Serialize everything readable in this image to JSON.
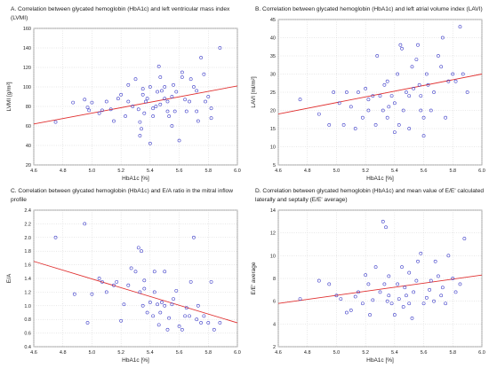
{
  "colors": {
    "point": "#3d3dc8",
    "line": "#e03030",
    "frame": "#8a8a8a",
    "text": "#222222",
    "panel": "#ffffff"
  },
  "chart_data": [
    {
      "panel": "A",
      "type": "scatter",
      "title": "A. Correlation between glycated hemoglobin (HbA1c) and left ventricular mass index (LVMI)",
      "xlabel": "HbA1c [%]",
      "ylabel": "LVMI [g/m²]",
      "xlim": [
        4.6,
        6.0
      ],
      "ylim": [
        20,
        160
      ],
      "xticks": [
        "4.6",
        "4.8",
        "5.0",
        "5.2",
        "5.4",
        "5.6",
        "5.8",
        "6.0"
      ],
      "yticks": [
        "20",
        "40",
        "60",
        "80",
        "100",
        "120",
        "140",
        "160"
      ],
      "grid": true,
      "regression": {
        "x": [
          4.6,
          6.0
        ],
        "y": [
          62,
          101
        ]
      },
      "points": [
        [
          4.75,
          64
        ],
        [
          4.87,
          84
        ],
        [
          4.95,
          87
        ],
        [
          4.97,
          79
        ],
        [
          4.98,
          76
        ],
        [
          5.0,
          84
        ],
        [
          5.05,
          73
        ],
        [
          5.07,
          76
        ],
        [
          5.1,
          85
        ],
        [
          5.13,
          77
        ],
        [
          5.15,
          65
        ],
        [
          5.18,
          88
        ],
        [
          5.2,
          92
        ],
        [
          5.23,
          70
        ],
        [
          5.25,
          85
        ],
        [
          5.28,
          80
        ],
        [
          5.3,
          108
        ],
        [
          5.32,
          77
        ],
        [
          5.33,
          64
        ],
        [
          5.35,
          92
        ],
        [
          5.33,
          50
        ],
        [
          5.34,
          57
        ],
        [
          5.36,
          73
        ],
        [
          5.37,
          85
        ],
        [
          5.38,
          88
        ],
        [
          5.4,
          100
        ],
        [
          5.4,
          42
        ],
        [
          5.42,
          78
        ],
        [
          5.44,
          80
        ],
        [
          5.45,
          95
        ],
        [
          5.46,
          121
        ],
        [
          5.47,
          110
        ],
        [
          5.48,
          96
        ],
        [
          5.5,
          100
        ],
        [
          5.5,
          88
        ],
        [
          5.52,
          85
        ],
        [
          5.53,
          70
        ],
        [
          5.55,
          90
        ],
        [
          5.55,
          60
        ],
        [
          5.57,
          75
        ],
        [
          5.58,
          95
        ],
        [
          5.6,
          45
        ],
        [
          5.62,
          115
        ],
        [
          5.62,
          110
        ],
        [
          5.64,
          87
        ],
        [
          5.65,
          75
        ],
        [
          5.67,
          85
        ],
        [
          5.7,
          100
        ],
        [
          5.72,
          96
        ],
        [
          5.73,
          65
        ],
        [
          5.75,
          130
        ],
        [
          5.77,
          113
        ],
        [
          5.78,
          85
        ],
        [
          5.8,
          90
        ],
        [
          5.82,
          78
        ],
        [
          5.82,
          68
        ],
        [
          5.88,
          140
        ],
        [
          5.72,
          75
        ],
        [
          5.52,
          75
        ],
        [
          5.35,
          98
        ],
        [
          5.56,
          102
        ],
        [
          5.47,
          82
        ],
        [
          5.42,
          70
        ],
        [
          5.68,
          108
        ],
        [
          5.25,
          102
        ]
      ]
    },
    {
      "panel": "B",
      "type": "scatter",
      "title": "B. Correlation between glycated hemoglobin (HbA1c) and left atrial volume index (LAVI)",
      "xlabel": "HbA1c [%]",
      "ylabel": "LAVI [ml/m²]",
      "xlim": [
        4.6,
        6.0
      ],
      "ylim": [
        5,
        45
      ],
      "xticks": [
        "4.6",
        "4.8",
        "5.0",
        "5.2",
        "5.4",
        "5.6",
        "5.8",
        "6.0"
      ],
      "yticks": [
        "5",
        "10",
        "15",
        "20",
        "25",
        "30",
        "35",
        "40",
        "45"
      ],
      "grid": true,
      "regression": {
        "x": [
          4.6,
          6.0
        ],
        "y": [
          19,
          30
        ]
      },
      "points": [
        [
          4.75,
          23
        ],
        [
          4.88,
          19
        ],
        [
          4.95,
          16
        ],
        [
          4.98,
          25
        ],
        [
          5.02,
          22
        ],
        [
          5.05,
          16
        ],
        [
          5.07,
          25
        ],
        [
          5.1,
          21
        ],
        [
          5.13,
          15
        ],
        [
          5.15,
          25
        ],
        [
          5.18,
          18
        ],
        [
          5.2,
          26
        ],
        [
          5.22,
          20
        ],
        [
          5.25,
          24
        ],
        [
          5.27,
          16
        ],
        [
          5.28,
          35
        ],
        [
          5.3,
          24
        ],
        [
          5.32,
          20
        ],
        [
          5.33,
          27
        ],
        [
          5.35,
          18
        ],
        [
          5.36,
          21
        ],
        [
          5.38,
          24
        ],
        [
          5.4,
          22
        ],
        [
          5.4,
          14
        ],
        [
          5.42,
          30
        ],
        [
          5.43,
          16
        ],
        [
          5.44,
          38
        ],
        [
          5.45,
          37
        ],
        [
          5.46,
          20
        ],
        [
          5.48,
          25
        ],
        [
          5.5,
          15
        ],
        [
          5.5,
          24
        ],
        [
          5.52,
          32
        ],
        [
          5.53,
          26
        ],
        [
          5.55,
          34
        ],
        [
          5.56,
          38
        ],
        [
          5.57,
          27
        ],
        [
          5.58,
          20
        ],
        [
          5.6,
          18
        ],
        [
          5.6,
          13
        ],
        [
          5.62,
          30
        ],
        [
          5.63,
          27
        ],
        [
          5.65,
          20
        ],
        [
          5.67,
          25
        ],
        [
          5.7,
          35
        ],
        [
          5.72,
          32
        ],
        [
          5.73,
          40
        ],
        [
          5.75,
          18
        ],
        [
          5.77,
          28
        ],
        [
          5.8,
          30
        ],
        [
          5.82,
          28
        ],
        [
          5.85,
          43
        ],
        [
          5.87,
          30
        ],
        [
          5.9,
          25
        ],
        [
          5.58,
          24
        ],
        [
          5.35,
          28
        ],
        [
          5.22,
          23
        ]
      ]
    },
    {
      "panel": "C",
      "type": "scatter",
      "title": "C. Correlation between glycated hemoglobin (HbA1c) and E/A ratio in the mitral inflow profile",
      "xlabel": "HbA1c [%]",
      "ylabel": "E/A",
      "xlim": [
        4.6,
        6.0
      ],
      "ylim": [
        0.4,
        2.4
      ],
      "xticks": [
        "4.6",
        "4.8",
        "5.0",
        "5.2",
        "5.4",
        "5.6",
        "5.8",
        "6.0"
      ],
      "yticks": [
        "0.4",
        "0.6",
        "0.8",
        "1.0",
        "1.2",
        "1.4",
        "1.6",
        "1.8",
        "2.0",
        "2.2",
        "2.4"
      ],
      "grid": true,
      "regression": {
        "x": [
          4.6,
          6.0
        ],
        "y": [
          1.65,
          0.75
        ]
      },
      "points": [
        [
          4.75,
          2.0
        ],
        [
          4.88,
          1.17
        ],
        [
          4.95,
          2.2
        ],
        [
          4.97,
          0.75
        ],
        [
          5.0,
          1.17
        ],
        [
          5.05,
          1.4
        ],
        [
          5.07,
          1.35
        ],
        [
          5.1,
          1.2
        ],
        [
          5.15,
          1.3
        ],
        [
          5.17,
          1.35
        ],
        [
          5.2,
          0.78
        ],
        [
          5.22,
          1.02
        ],
        [
          5.25,
          1.3
        ],
        [
          5.27,
          1.55
        ],
        [
          5.3,
          1.5
        ],
        [
          5.32,
          1.85
        ],
        [
          5.33,
          1.2
        ],
        [
          5.34,
          1.8
        ],
        [
          5.35,
          1.0
        ],
        [
          5.36,
          1.37
        ],
        [
          5.38,
          0.9
        ],
        [
          5.4,
          1.05
        ],
        [
          5.42,
          0.85
        ],
        [
          5.43,
          1.5
        ],
        [
          5.45,
          1.02
        ],
        [
          5.46,
          0.72
        ],
        [
          5.47,
          0.9
        ],
        [
          5.48,
          1.05
        ],
        [
          5.5,
          1.5
        ],
        [
          5.5,
          1.0
        ],
        [
          5.52,
          0.65
        ],
        [
          5.53,
          0.82
        ],
        [
          5.55,
          1.02
        ],
        [
          5.56,
          1.1
        ],
        [
          5.58,
          1.22
        ],
        [
          5.6,
          0.7
        ],
        [
          5.62,
          0.65
        ],
        [
          5.64,
          0.85
        ],
        [
          5.65,
          0.97
        ],
        [
          5.67,
          0.85
        ],
        [
          5.68,
          1.35
        ],
        [
          5.7,
          2.0
        ],
        [
          5.72,
          0.8
        ],
        [
          5.73,
          1.0
        ],
        [
          5.75,
          0.75
        ],
        [
          5.77,
          0.85
        ],
        [
          5.8,
          0.75
        ],
        [
          5.82,
          1.35
        ],
        [
          5.84,
          0.65
        ],
        [
          5.88,
          0.75
        ],
        [
          5.43,
          1.2
        ],
        [
          5.36,
          1.25
        ]
      ]
    },
    {
      "panel": "D",
      "type": "scatter",
      "title": "D. Correlation between glycated hemoglobin (HbA1c) and mean value of E/E' calculated laterally and septally (E/E' average)",
      "xlabel": "HbA1c [%]",
      "ylabel": "E/E' average",
      "xlim": [
        4.6,
        6.0
      ],
      "ylim": [
        2,
        14
      ],
      "xticks": [
        "4.6",
        "4.8",
        "5.0",
        "5.2",
        "5.4",
        "5.6",
        "5.8",
        "6.0"
      ],
      "yticks": [
        "2",
        "4",
        "6",
        "8",
        "10",
        "12",
        "14"
      ],
      "grid": true,
      "regression": {
        "x": [
          4.6,
          6.0
        ],
        "y": [
          5.8,
          8.3
        ]
      },
      "points": [
        [
          4.75,
          6.2
        ],
        [
          4.88,
          7.8
        ],
        [
          4.95,
          7.5
        ],
        [
          5.0,
          6.5
        ],
        [
          5.03,
          6.2
        ],
        [
          5.07,
          5.0
        ],
        [
          5.1,
          5.2
        ],
        [
          5.13,
          6.4
        ],
        [
          5.15,
          6.8
        ],
        [
          5.18,
          5.8
        ],
        [
          5.2,
          8.3
        ],
        [
          5.22,
          7.5
        ],
        [
          5.25,
          6.1
        ],
        [
          5.27,
          9.0
        ],
        [
          5.3,
          6.8
        ],
        [
          5.32,
          13.0
        ],
        [
          5.33,
          7.5
        ],
        [
          5.34,
          12.5
        ],
        [
          5.35,
          6.0
        ],
        [
          5.36,
          8.2
        ],
        [
          5.38,
          5.8
        ],
        [
          5.4,
          4.8
        ],
        [
          5.42,
          7.5
        ],
        [
          5.43,
          6.2
        ],
        [
          5.45,
          9.0
        ],
        [
          5.46,
          5.5
        ],
        [
          5.47,
          7.2
        ],
        [
          5.48,
          6.5
        ],
        [
          5.5,
          8.5
        ],
        [
          5.5,
          5.8
        ],
        [
          5.52,
          4.5
        ],
        [
          5.53,
          6.8
        ],
        [
          5.55,
          7.8
        ],
        [
          5.56,
          9.5
        ],
        [
          5.58,
          10.2
        ],
        [
          5.6,
          5.8
        ],
        [
          5.62,
          6.3
        ],
        [
          5.64,
          7.0
        ],
        [
          5.65,
          7.8
        ],
        [
          5.67,
          6.0
        ],
        [
          5.68,
          9.5
        ],
        [
          5.7,
          8.2
        ],
        [
          5.72,
          6.5
        ],
        [
          5.73,
          7.2
        ],
        [
          5.75,
          5.8
        ],
        [
          5.77,
          10.0
        ],
        [
          5.8,
          8.0
        ],
        [
          5.82,
          6.8
        ],
        [
          5.85,
          7.5
        ],
        [
          5.88,
          11.5
        ],
        [
          5.36,
          6.5
        ],
        [
          5.23,
          4.8
        ]
      ]
    }
  ]
}
